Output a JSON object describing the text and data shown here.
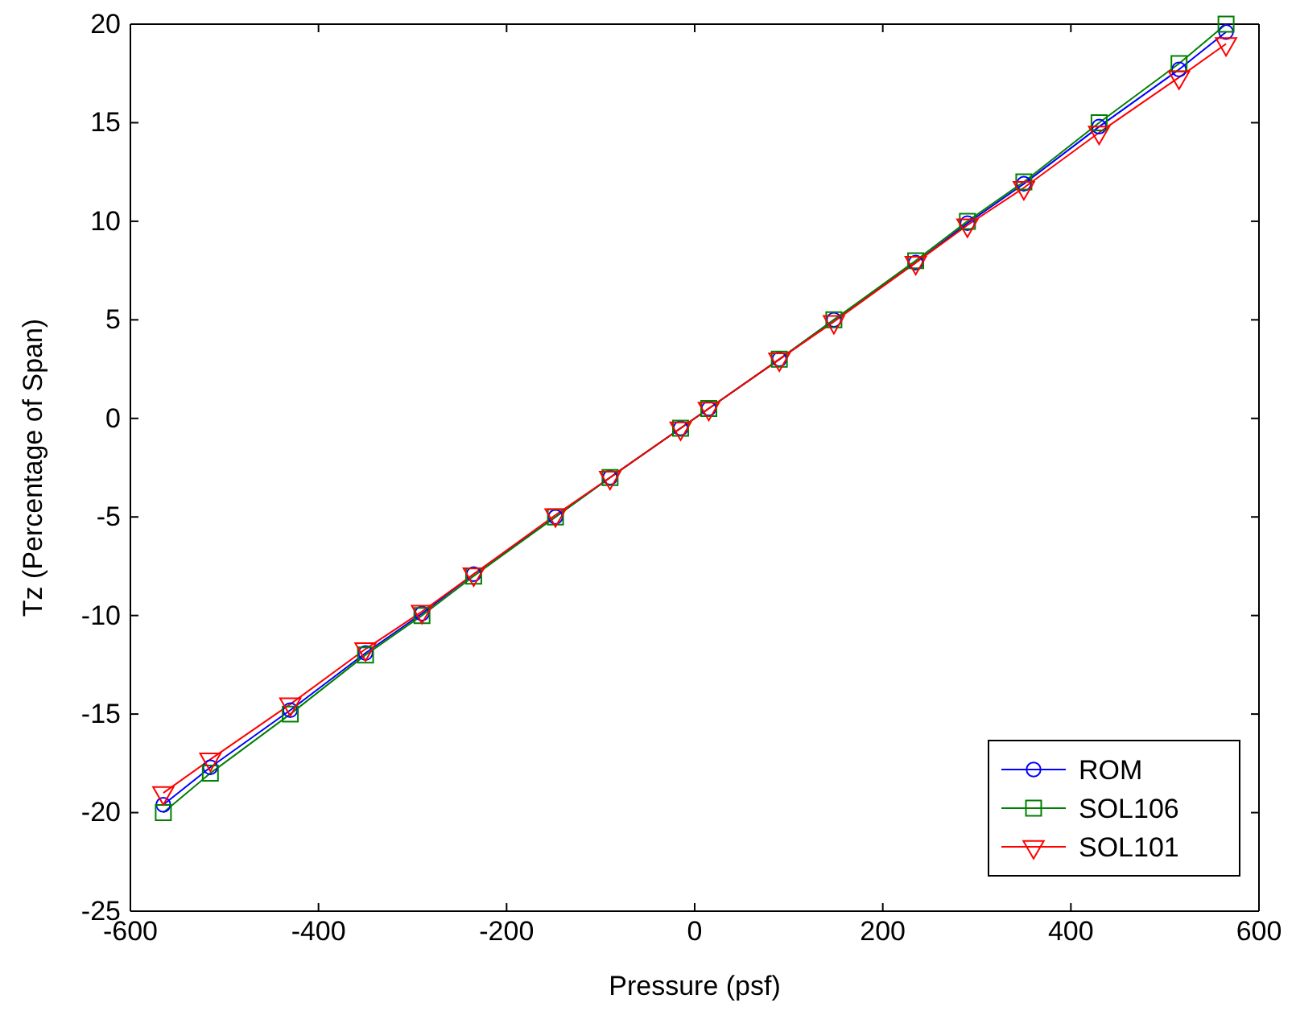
{
  "chart_data": {
    "type": "line",
    "xlabel": "Pressure (psf)",
    "ylabel": "Tz (Percentage of Span)",
    "x": [
      -565,
      -515,
      -430,
      -350,
      -290,
      -235,
      -148,
      -90,
      -15,
      15,
      90,
      148,
      235,
      290,
      350,
      430,
      515,
      565
    ],
    "series": [
      {
        "name": "ROM",
        "color": "#0000ff",
        "marker": "circle",
        "values": [
          -19.6,
          -17.7,
          -14.8,
          -11.9,
          -9.9,
          -7.9,
          -5,
          -3,
          -0.5,
          0.5,
          3,
          5,
          7.9,
          9.9,
          11.9,
          14.8,
          17.7,
          19.6
        ]
      },
      {
        "name": "SOL106",
        "color": "#008000",
        "marker": "square",
        "values": [
          -20,
          -18,
          -15,
          -12,
          -10,
          -8,
          -5,
          -3,
          -0.5,
          0.5,
          3,
          5,
          8,
          10,
          12,
          15,
          18,
          20
        ]
      },
      {
        "name": "SOL101",
        "color": "#ff0000",
        "marker": "triangle",
        "values": [
          -19,
          -17.3,
          -14.5,
          -11.7,
          -9.8,
          -7.9,
          -4.9,
          -3,
          -0.5,
          0.5,
          3,
          4.9,
          7.9,
          9.8,
          11.7,
          14.5,
          17.3,
          19
        ]
      }
    ],
    "xlim": [
      -600,
      600
    ],
    "xticks": [
      -600,
      -400,
      -200,
      0,
      200,
      400,
      600
    ],
    "ylim": [
      -25,
      20
    ],
    "yticks": [
      -25,
      -20,
      -15,
      -10,
      -5,
      0,
      5,
      10,
      15,
      20
    ],
    "grid": false,
    "legend": "bottom right"
  }
}
